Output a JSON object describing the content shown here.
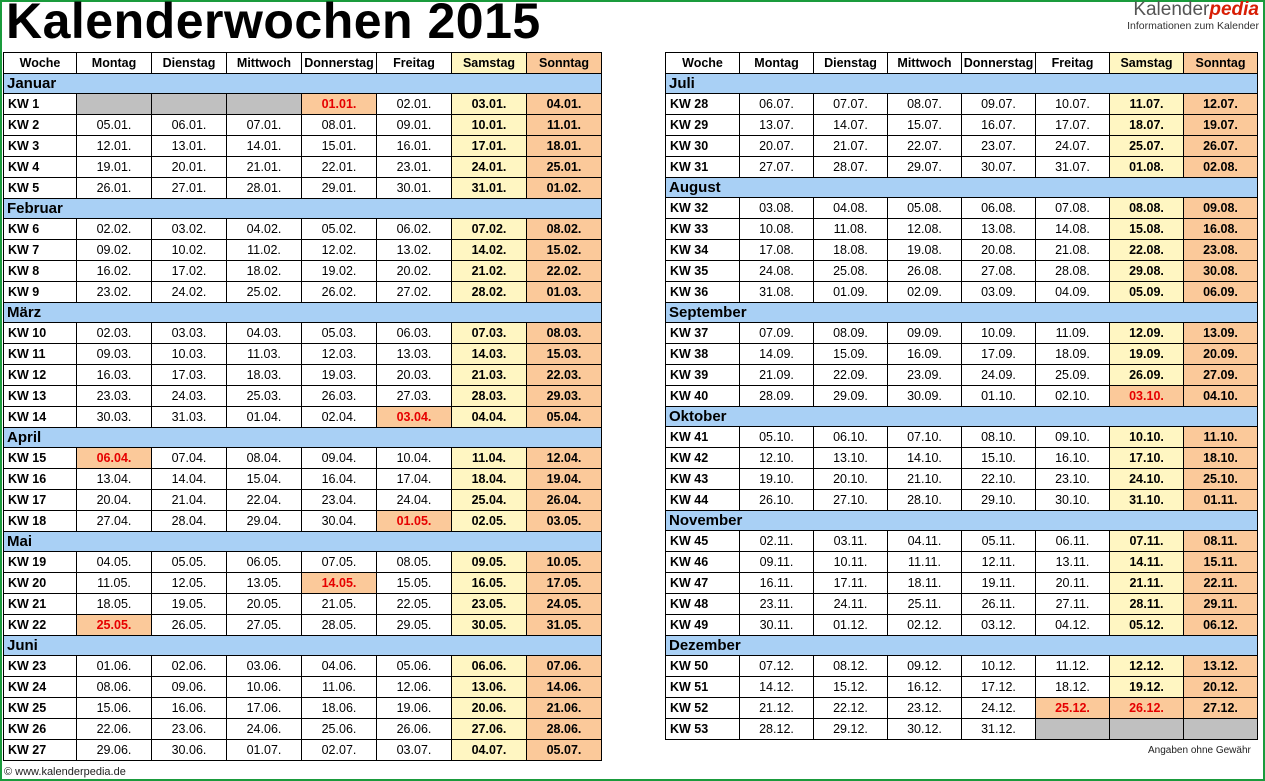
{
  "title": "Kalenderwochen 2015",
  "brand": {
    "name_plain": "Kalender",
    "name_accent": "pedia",
    "tagline": "Informationen zum Kalender"
  },
  "headers": [
    "Woche",
    "Montag",
    "Dienstag",
    "Mittwoch",
    "Donnerstag",
    "Freitag",
    "Samstag",
    "Sonntag"
  ],
  "left": [
    {
      "month": "Januar",
      "rows": [
        [
          "KW 1",
          "",
          "",
          "",
          "01.01.",
          "02.01.",
          "03.01.",
          "04.01."
        ],
        [
          "KW 2",
          "05.01.",
          "06.01.",
          "07.01.",
          "08.01.",
          "09.01.",
          "10.01.",
          "11.01."
        ],
        [
          "KW 3",
          "12.01.",
          "13.01.",
          "14.01.",
          "15.01.",
          "16.01.",
          "17.01.",
          "18.01."
        ],
        [
          "KW 4",
          "19.01.",
          "20.01.",
          "21.01.",
          "22.01.",
          "23.01.",
          "24.01.",
          "25.01."
        ],
        [
          "KW 5",
          "26.01.",
          "27.01.",
          "28.01.",
          "29.01.",
          "30.01.",
          "31.01.",
          "01.02."
        ]
      ]
    },
    {
      "month": "Februar",
      "rows": [
        [
          "KW 6",
          "02.02.",
          "03.02.",
          "04.02.",
          "05.02.",
          "06.02.",
          "07.02.",
          "08.02."
        ],
        [
          "KW 7",
          "09.02.",
          "10.02.",
          "11.02.",
          "12.02.",
          "13.02.",
          "14.02.",
          "15.02."
        ],
        [
          "KW 8",
          "16.02.",
          "17.02.",
          "18.02.",
          "19.02.",
          "20.02.",
          "21.02.",
          "22.02."
        ],
        [
          "KW 9",
          "23.02.",
          "24.02.",
          "25.02.",
          "26.02.",
          "27.02.",
          "28.02.",
          "01.03."
        ]
      ]
    },
    {
      "month": "März",
      "rows": [
        [
          "KW 10",
          "02.03.",
          "03.03.",
          "04.03.",
          "05.03.",
          "06.03.",
          "07.03.",
          "08.03."
        ],
        [
          "KW 11",
          "09.03.",
          "10.03.",
          "11.03.",
          "12.03.",
          "13.03.",
          "14.03.",
          "15.03."
        ],
        [
          "KW 12",
          "16.03.",
          "17.03.",
          "18.03.",
          "19.03.",
          "20.03.",
          "21.03.",
          "22.03."
        ],
        [
          "KW 13",
          "23.03.",
          "24.03.",
          "25.03.",
          "26.03.",
          "27.03.",
          "28.03.",
          "29.03."
        ],
        [
          "KW 14",
          "30.03.",
          "31.03.",
          "01.04.",
          "02.04.",
          "03.04.",
          "04.04.",
          "05.04."
        ]
      ]
    },
    {
      "month": "April",
      "rows": [
        [
          "KW 15",
          "06.04.",
          "07.04.",
          "08.04.",
          "09.04.",
          "10.04.",
          "11.04.",
          "12.04."
        ],
        [
          "KW 16",
          "13.04.",
          "14.04.",
          "15.04.",
          "16.04.",
          "17.04.",
          "18.04.",
          "19.04."
        ],
        [
          "KW 17",
          "20.04.",
          "21.04.",
          "22.04.",
          "23.04.",
          "24.04.",
          "25.04.",
          "26.04."
        ],
        [
          "KW 18",
          "27.04.",
          "28.04.",
          "29.04.",
          "30.04.",
          "01.05.",
          "02.05.",
          "03.05."
        ]
      ]
    },
    {
      "month": "Mai",
      "rows": [
        [
          "KW 19",
          "04.05.",
          "05.05.",
          "06.05.",
          "07.05.",
          "08.05.",
          "09.05.",
          "10.05."
        ],
        [
          "KW 20",
          "11.05.",
          "12.05.",
          "13.05.",
          "14.05.",
          "15.05.",
          "16.05.",
          "17.05."
        ],
        [
          "KW 21",
          "18.05.",
          "19.05.",
          "20.05.",
          "21.05.",
          "22.05.",
          "23.05.",
          "24.05."
        ],
        [
          "KW 22",
          "25.05.",
          "26.05.",
          "27.05.",
          "28.05.",
          "29.05.",
          "30.05.",
          "31.05."
        ]
      ]
    },
    {
      "month": "Juni",
      "rows": [
        [
          "KW 23",
          "01.06.",
          "02.06.",
          "03.06.",
          "04.06.",
          "05.06.",
          "06.06.",
          "07.06."
        ],
        [
          "KW 24",
          "08.06.",
          "09.06.",
          "10.06.",
          "11.06.",
          "12.06.",
          "13.06.",
          "14.06."
        ],
        [
          "KW 25",
          "15.06.",
          "16.06.",
          "17.06.",
          "18.06.",
          "19.06.",
          "20.06.",
          "21.06."
        ],
        [
          "KW 26",
          "22.06.",
          "23.06.",
          "24.06.",
          "25.06.",
          "26.06.",
          "27.06.",
          "28.06."
        ],
        [
          "KW 27",
          "29.06.",
          "30.06.",
          "01.07.",
          "02.07.",
          "03.07.",
          "04.07.",
          "05.07."
        ]
      ]
    }
  ],
  "right": [
    {
      "month": "Juli",
      "rows": [
        [
          "KW 28",
          "06.07.",
          "07.07.",
          "08.07.",
          "09.07.",
          "10.07.",
          "11.07.",
          "12.07."
        ],
        [
          "KW 29",
          "13.07.",
          "14.07.",
          "15.07.",
          "16.07.",
          "17.07.",
          "18.07.",
          "19.07."
        ],
        [
          "KW 30",
          "20.07.",
          "21.07.",
          "22.07.",
          "23.07.",
          "24.07.",
          "25.07.",
          "26.07."
        ],
        [
          "KW 31",
          "27.07.",
          "28.07.",
          "29.07.",
          "30.07.",
          "31.07.",
          "01.08.",
          "02.08."
        ]
      ]
    },
    {
      "month": "August",
      "rows": [
        [
          "KW 32",
          "03.08.",
          "04.08.",
          "05.08.",
          "06.08.",
          "07.08.",
          "08.08.",
          "09.08."
        ],
        [
          "KW 33",
          "10.08.",
          "11.08.",
          "12.08.",
          "13.08.",
          "14.08.",
          "15.08.",
          "16.08."
        ],
        [
          "KW 34",
          "17.08.",
          "18.08.",
          "19.08.",
          "20.08.",
          "21.08.",
          "22.08.",
          "23.08."
        ],
        [
          "KW 35",
          "24.08.",
          "25.08.",
          "26.08.",
          "27.08.",
          "28.08.",
          "29.08.",
          "30.08."
        ],
        [
          "KW 36",
          "31.08.",
          "01.09.",
          "02.09.",
          "03.09.",
          "04.09.",
          "05.09.",
          "06.09."
        ]
      ]
    },
    {
      "month": "September",
      "rows": [
        [
          "KW 37",
          "07.09.",
          "08.09.",
          "09.09.",
          "10.09.",
          "11.09.",
          "12.09.",
          "13.09."
        ],
        [
          "KW 38",
          "14.09.",
          "15.09.",
          "16.09.",
          "17.09.",
          "18.09.",
          "19.09.",
          "20.09."
        ],
        [
          "KW 39",
          "21.09.",
          "22.09.",
          "23.09.",
          "24.09.",
          "25.09.",
          "26.09.",
          "27.09."
        ],
        [
          "KW 40",
          "28.09.",
          "29.09.",
          "30.09.",
          "01.10.",
          "02.10.",
          "03.10.",
          "04.10."
        ]
      ]
    },
    {
      "month": "Oktober",
      "rows": [
        [
          "KW 41",
          "05.10.",
          "06.10.",
          "07.10.",
          "08.10.",
          "09.10.",
          "10.10.",
          "11.10."
        ],
        [
          "KW 42",
          "12.10.",
          "13.10.",
          "14.10.",
          "15.10.",
          "16.10.",
          "17.10.",
          "18.10."
        ],
        [
          "KW 43",
          "19.10.",
          "20.10.",
          "21.10.",
          "22.10.",
          "23.10.",
          "24.10.",
          "25.10."
        ],
        [
          "KW 44",
          "26.10.",
          "27.10.",
          "28.10.",
          "29.10.",
          "30.10.",
          "31.10.",
          "01.11."
        ]
      ]
    },
    {
      "month": "November",
      "rows": [
        [
          "KW 45",
          "02.11.",
          "03.11.",
          "04.11.",
          "05.11.",
          "06.11.",
          "07.11.",
          "08.11."
        ],
        [
          "KW 46",
          "09.11.",
          "10.11.",
          "11.11.",
          "12.11.",
          "13.11.",
          "14.11.",
          "15.11."
        ],
        [
          "KW 47",
          "16.11.",
          "17.11.",
          "18.11.",
          "19.11.",
          "20.11.",
          "21.11.",
          "22.11."
        ],
        [
          "KW 48",
          "23.11.",
          "24.11.",
          "25.11.",
          "26.11.",
          "27.11.",
          "28.11.",
          "29.11."
        ],
        [
          "KW 49",
          "30.11.",
          "01.12.",
          "02.12.",
          "03.12.",
          "04.12.",
          "05.12.",
          "06.12."
        ]
      ]
    },
    {
      "month": "Dezember",
      "rows": [
        [
          "KW 50",
          "07.12.",
          "08.12.",
          "09.12.",
          "10.12.",
          "11.12.",
          "12.12.",
          "13.12."
        ],
        [
          "KW 51",
          "14.12.",
          "15.12.",
          "16.12.",
          "17.12.",
          "18.12.",
          "19.12.",
          "20.12."
        ],
        [
          "KW 52",
          "21.12.",
          "22.12.",
          "23.12.",
          "24.12.",
          "25.12.",
          "26.12.",
          "27.12."
        ],
        [
          "KW 53",
          "28.12.",
          "29.12.",
          "30.12.",
          "31.12.",
          "",
          "",
          ""
        ]
      ]
    }
  ],
  "holidays": [
    "01.01.",
    "03.04.",
    "06.04.",
    "01.05.",
    "14.05.",
    "25.05.",
    "03.10.",
    "25.12.",
    "26.12."
  ],
  "colors": {
    "month_band": "#a9d0f5",
    "saturday": "#fff6c2",
    "sunday_holiday": "#fbc99a",
    "holiday_text": "#e60000",
    "empty_cell": "#c0c0c0",
    "frame": "#1a9b3c"
  },
  "disclaimer": "Angaben ohne Gewähr",
  "footer": "© www.kalenderpedia.de"
}
